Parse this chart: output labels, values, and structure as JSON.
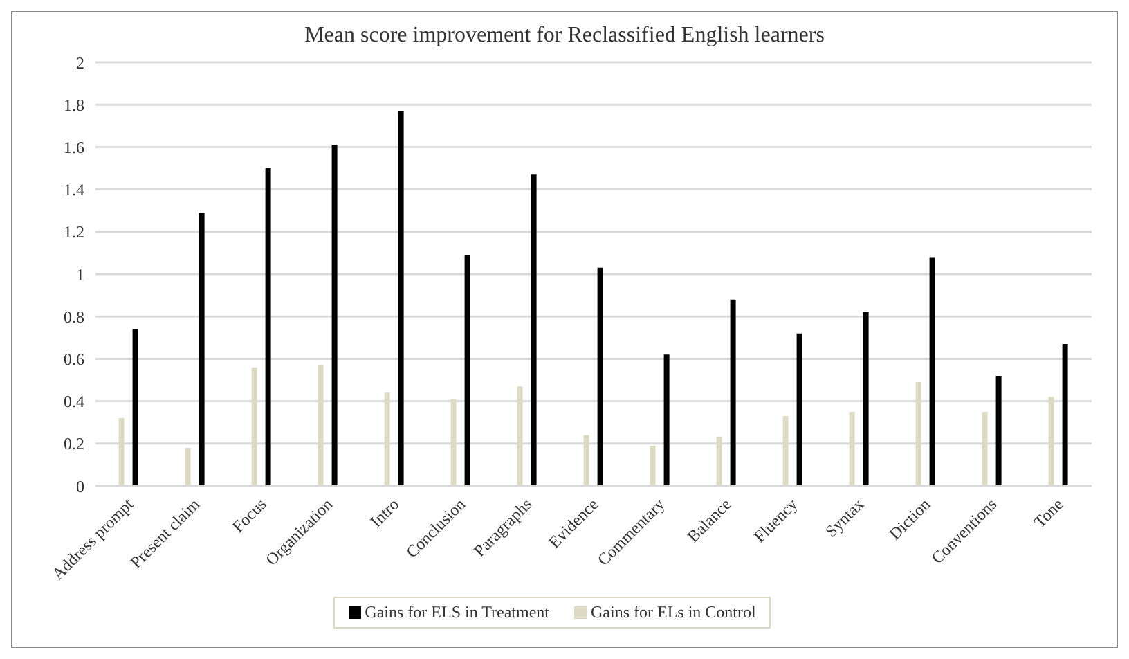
{
  "chart_data": {
    "type": "bar",
    "title": "Mean score improvement for Reclassified English learners",
    "categories": [
      "Address prompt",
      "Present claim",
      "Focus",
      "Organization",
      "Intro",
      "Conclusion",
      "Paragraphs",
      "Evidence",
      "Commentary",
      "Balance",
      "Fluency",
      "Syntax",
      "Diction",
      "Conventions",
      "Tone"
    ],
    "series": [
      {
        "name": "Gains for ELs in Control",
        "color": "#ddd9c4",
        "values": [
          0.32,
          0.18,
          0.56,
          0.57,
          0.44,
          0.41,
          0.47,
          0.24,
          0.19,
          0.23,
          0.33,
          0.35,
          0.49,
          0.35,
          0.42
        ]
      },
      {
        "name": "Gains for ELS in Treatment",
        "color": "#000000",
        "values": [
          0.74,
          1.29,
          1.5,
          1.61,
          1.77,
          1.09,
          1.47,
          1.03,
          0.62,
          0.88,
          0.72,
          0.82,
          1.08,
          0.52,
          0.67
        ]
      }
    ],
    "ylim": [
      0,
      2
    ],
    "yticks": [
      0,
      0.2,
      0.4,
      0.6,
      0.8,
      1,
      1.2,
      1.4,
      1.6,
      1.8,
      2
    ],
    "grid": "y",
    "legend": "bottom"
  }
}
